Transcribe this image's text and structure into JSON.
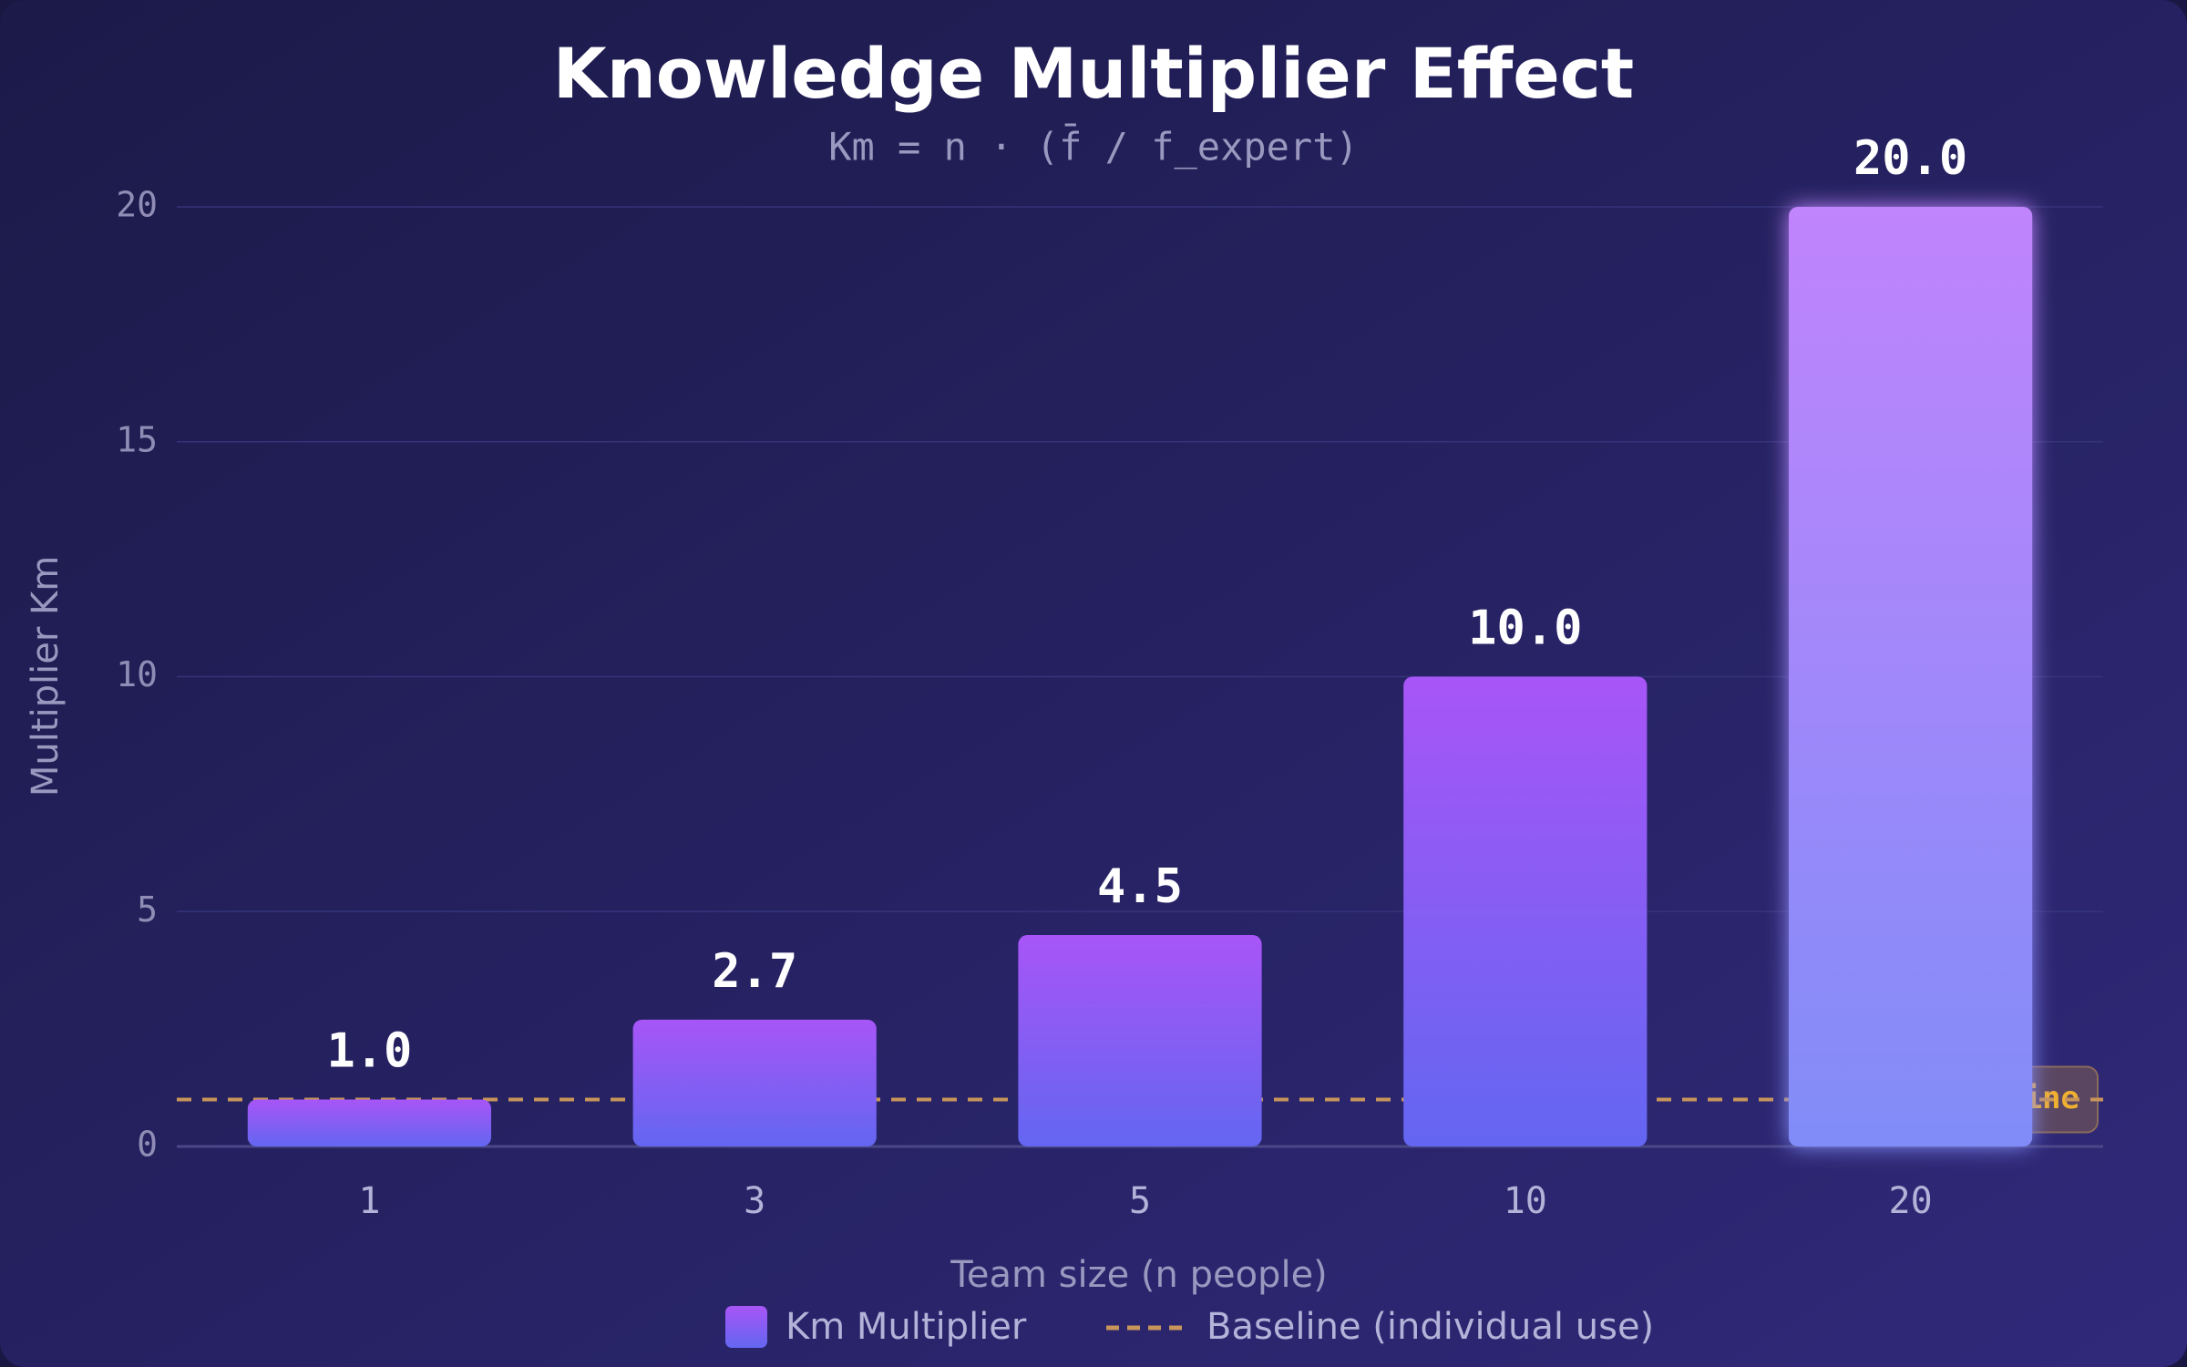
{
  "chart_data": {
    "type": "bar",
    "title": "Knowledge Multiplier Effect",
    "subtitle": "Km = n · (f̄ / f_expert)",
    "x_label": "Team size (n people)",
    "y_label": "Multiplier Km",
    "categories": [
      "1",
      "3",
      "5",
      "10",
      "20"
    ],
    "series": [
      {
        "name": "Km Multiplier",
        "color": "#a855f7",
        "values": [
          1.0,
          2.7,
          4.5,
          10.0,
          20.0
        ],
        "value_labels": [
          "1.0",
          "2.7",
          "4.5",
          "10.0",
          "20.0"
        ]
      }
    ],
    "baseline": {
      "name": "Baseline (individual use)",
      "value": 1,
      "color": "#c8955a",
      "annotation": "Baseline"
    },
    "ylim": [
      0,
      20
    ],
    "yticks": [
      0,
      5,
      10,
      15,
      20
    ],
    "grid": true,
    "legend": "bottom"
  }
}
